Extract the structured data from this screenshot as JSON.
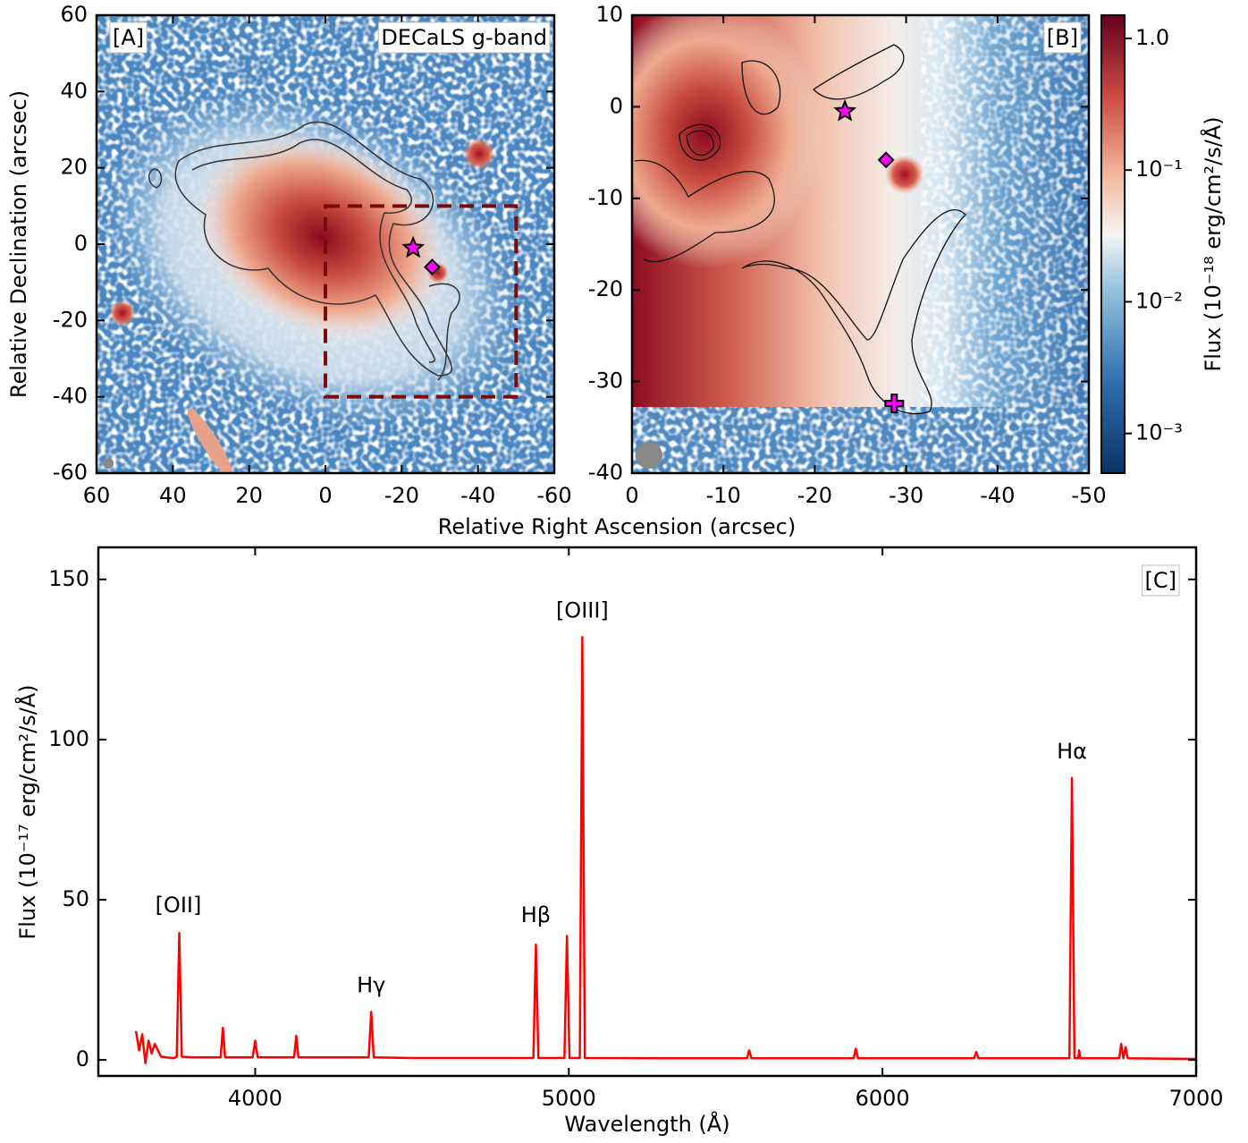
{
  "chart_data": [
    {
      "type": "image",
      "panel_label": "[A]",
      "band_label": "DECaLS g-band",
      "xlabel": "Relative Right Ascension (arcsec)",
      "ylabel": "Relative Declination (arcsec)",
      "xlim": [
        60,
        -60
      ],
      "ylim": [
        -60,
        60
      ],
      "xticks": [
        60,
        40,
        20,
        0,
        -20,
        -40,
        -60
      ],
      "yticks": [
        -60,
        -40,
        -20,
        0,
        20,
        40,
        60
      ],
      "marker_color": "#ff00ff",
      "markers": [
        {
          "shape": "star",
          "x": -23,
          "y": -1
        },
        {
          "shape": "diamond",
          "x": -28,
          "y": -6
        }
      ],
      "box": {
        "x": [
          0,
          -50
        ],
        "y": [
          -40,
          10
        ],
        "color": "#7b0a0a"
      }
    },
    {
      "type": "image",
      "panel_label": "[B]",
      "xlim": [
        0,
        -50
      ],
      "ylim": [
        -40,
        10
      ],
      "xticks": [
        0,
        -10,
        -20,
        -30,
        -40,
        -50
      ],
      "yticks": [
        -40,
        -30,
        -20,
        -10,
        0,
        10
      ],
      "marker_color": "#ff00ff",
      "markers": [
        {
          "shape": "star",
          "x": -23.3,
          "y": -0.5
        },
        {
          "shape": "diamond",
          "x": -27.8,
          "y": -5.8
        },
        {
          "shape": "plus",
          "x": -28.7,
          "y": -32.4
        }
      ],
      "colorbar": {
        "label": "Flux (10⁻¹⁸ erg/cm²/s/Å)",
        "log": true,
        "lim": [
          0.0005,
          1.5
        ],
        "ticks": [
          {
            "value": 1.0,
            "label": "1.0"
          },
          {
            "value": 0.1,
            "label": "10⁻¹"
          },
          {
            "value": 0.01,
            "label": "10⁻²"
          },
          {
            "value": 0.001,
            "label": "10⁻³"
          }
        ]
      }
    },
    {
      "type": "line",
      "panel_label": "[C]",
      "xlabel": "Wavelength (Å)",
      "ylabel": "Flux (10⁻¹⁷ erg/cm²/s/Å)",
      "xlim": [
        3500,
        7000
      ],
      "ylim": [
        -5,
        160
      ],
      "xticks": [
        4000,
        5000,
        6000,
        7000
      ],
      "yticks": [
        0,
        50,
        100,
        150
      ],
      "color": "#ff0000",
      "x": [
        3620,
        3630,
        3640,
        3650,
        3660,
        3670,
        3680,
        3700,
        3740,
        3750,
        3758,
        3766,
        3800,
        3890,
        3897,
        3904,
        3992,
        4000,
        4008,
        4124,
        4131,
        4138,
        4362,
        4370,
        4378,
        4500,
        4887,
        4895,
        4903,
        4986,
        4994,
        5002,
        5035,
        5043,
        5051,
        5300,
        5568,
        5575,
        5582,
        5908,
        5915,
        5922,
        6292,
        6299,
        6306,
        6596,
        6604,
        6612,
        6624,
        6627,
        6630,
        6755,
        6761,
        6768,
        6775,
        6782,
        7000
      ],
      "values": [
        9,
        3,
        8,
        -1,
        6,
        2,
        5,
        1,
        0.5,
        1,
        39.6,
        1,
        0.8,
        0.8,
        10,
        0.8,
        0.8,
        6,
        0.8,
        0.8,
        7.5,
        0.8,
        0.8,
        15,
        0.8,
        0.6,
        0.6,
        36,
        0.6,
        0.6,
        38.7,
        0.6,
        0.6,
        132,
        0.6,
        0.5,
        0.5,
        3,
        0.5,
        0.5,
        3.5,
        0.5,
        0.5,
        2.5,
        0.5,
        0.5,
        88,
        0.5,
        0.5,
        3,
        0.5,
        0.5,
        5,
        0.5,
        4,
        0.5,
        0.3
      ],
      "annotations": [
        {
          "text": "[OII]",
          "x": 3755,
          "y": 48
        },
        {
          "text": "Hγ",
          "x": 4370,
          "y": 23
        },
        {
          "text": "Hβ",
          "x": 4895,
          "y": 45
        },
        {
          "text": "[OIII]",
          "x": 5043,
          "y": 140
        },
        {
          "text": "Hα",
          "x": 6604,
          "y": 96
        }
      ]
    }
  ]
}
